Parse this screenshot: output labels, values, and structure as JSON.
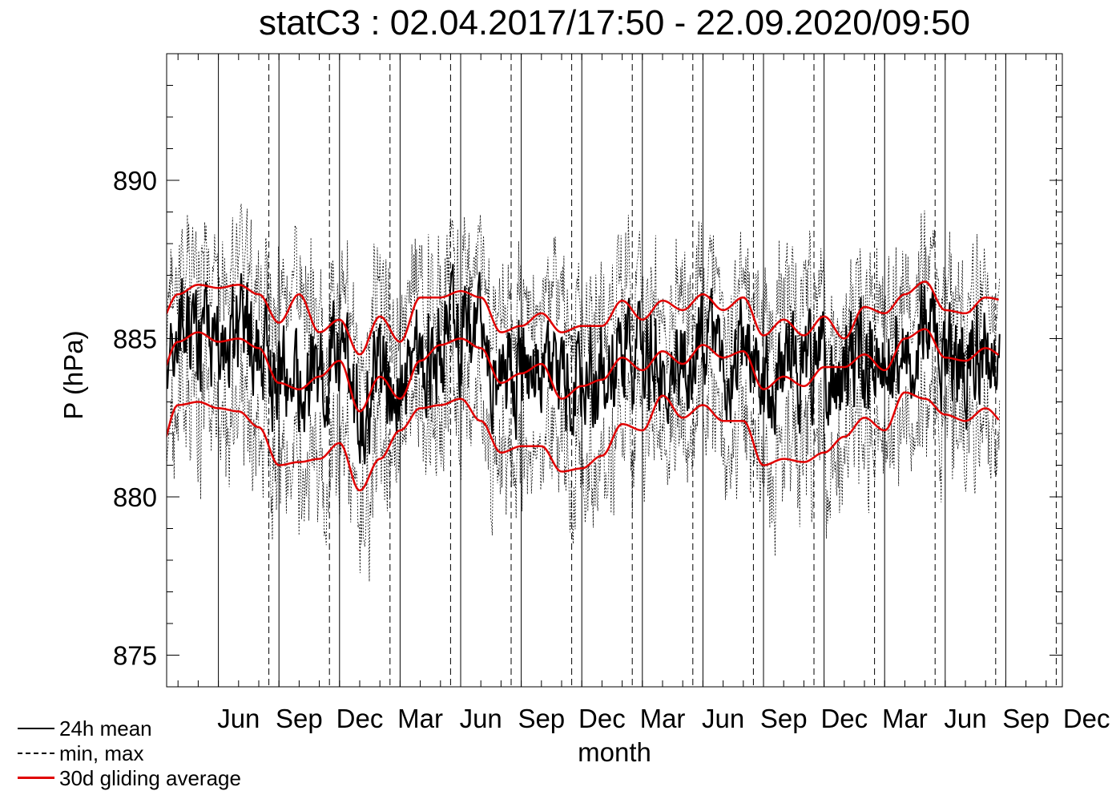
{
  "chart_data": {
    "type": "line",
    "title": "statC3 : 02.04.2017/17:50 - 22.09.2020/09:50",
    "xlabel": "month",
    "ylabel": "P (hPa)",
    "ylim": [
      874,
      894
    ],
    "yticks": [
      875,
      880,
      885,
      890
    ],
    "xticks": [
      "Jun",
      "Sep",
      "Dec",
      "Mar",
      "Jun",
      "Sep",
      "Dec",
      "Mar",
      "Jun",
      "Sep",
      "Dec",
      "Mar",
      "Jun",
      "Sep",
      "Dec"
    ],
    "grid": "vertical month lines: solid at quarter boundaries, dashed at season midpoints",
    "legend_position": "bottom-left",
    "colors": {
      "mean": "#000000",
      "minmax": "#000000",
      "average": "#e00000"
    },
    "series": [
      {
        "name": "24h mean",
        "style": "solid"
      },
      {
        "name": "min, max",
        "style": "dashed"
      },
      {
        "name": "30d gliding average",
        "style": "solid-red"
      }
    ],
    "gliding_average": {
      "x_months": [
        0,
        1,
        2,
        3,
        4,
        5,
        6,
        7,
        8,
        9,
        10,
        11,
        12,
        13,
        14,
        15,
        16,
        17,
        18,
        19,
        20,
        21,
        22,
        23,
        24,
        25,
        26,
        27,
        28,
        29,
        30,
        31,
        32,
        33,
        34,
        35,
        36,
        37,
        38,
        39,
        40,
        41,
        42
      ],
      "upper": [
        885.4,
        886.4,
        886.7,
        886.6,
        886.7,
        886.4,
        885.5,
        886.4,
        885.2,
        885.6,
        884.5,
        885.7,
        884.9,
        886.3,
        886.3,
        886.5,
        886.3,
        885.2,
        885.4,
        885.8,
        885.2,
        885.4,
        885.4,
        886.2,
        885.6,
        886.2,
        885.9,
        886.4,
        885.9,
        886.3,
        885.1,
        885.6,
        885.1,
        885.7,
        885.0,
        886.0,
        885.8,
        886.4,
        886.8,
        885.9,
        885.8,
        886.3,
        886.2
      ],
      "middle": [
        883.7,
        884.9,
        885.2,
        884.9,
        885.0,
        884.7,
        883.6,
        883.4,
        883.8,
        884.3,
        882.7,
        883.8,
        883.1,
        884.3,
        884.8,
        885.0,
        884.7,
        883.6,
        883.9,
        884.2,
        883.1,
        883.5,
        883.7,
        884.4,
        884.0,
        884.6,
        884.2,
        884.8,
        884.4,
        884.6,
        883.4,
        883.8,
        883.5,
        884.1,
        884.1,
        884.5,
        884.0,
        885.0,
        885.3,
        884.4,
        884.3,
        884.7,
        884.4
      ],
      "lower": [
        881.3,
        882.9,
        883.0,
        882.8,
        882.7,
        882.2,
        881.0,
        881.1,
        881.2,
        881.7,
        880.2,
        881.2,
        882.1,
        882.8,
        882.9,
        883.1,
        882.4,
        881.4,
        881.6,
        881.6,
        880.8,
        880.9,
        881.3,
        882.3,
        882.1,
        883.2,
        882.5,
        882.9,
        882.4,
        882.4,
        881.0,
        881.2,
        881.1,
        881.4,
        881.9,
        882.5,
        882.1,
        883.3,
        883.1,
        882.6,
        882.4,
        882.8,
        882.3
      ]
    }
  },
  "legend": {
    "mean_label": "24h mean",
    "minmax_label": "min, max",
    "avg_label": "30d gliding average"
  }
}
